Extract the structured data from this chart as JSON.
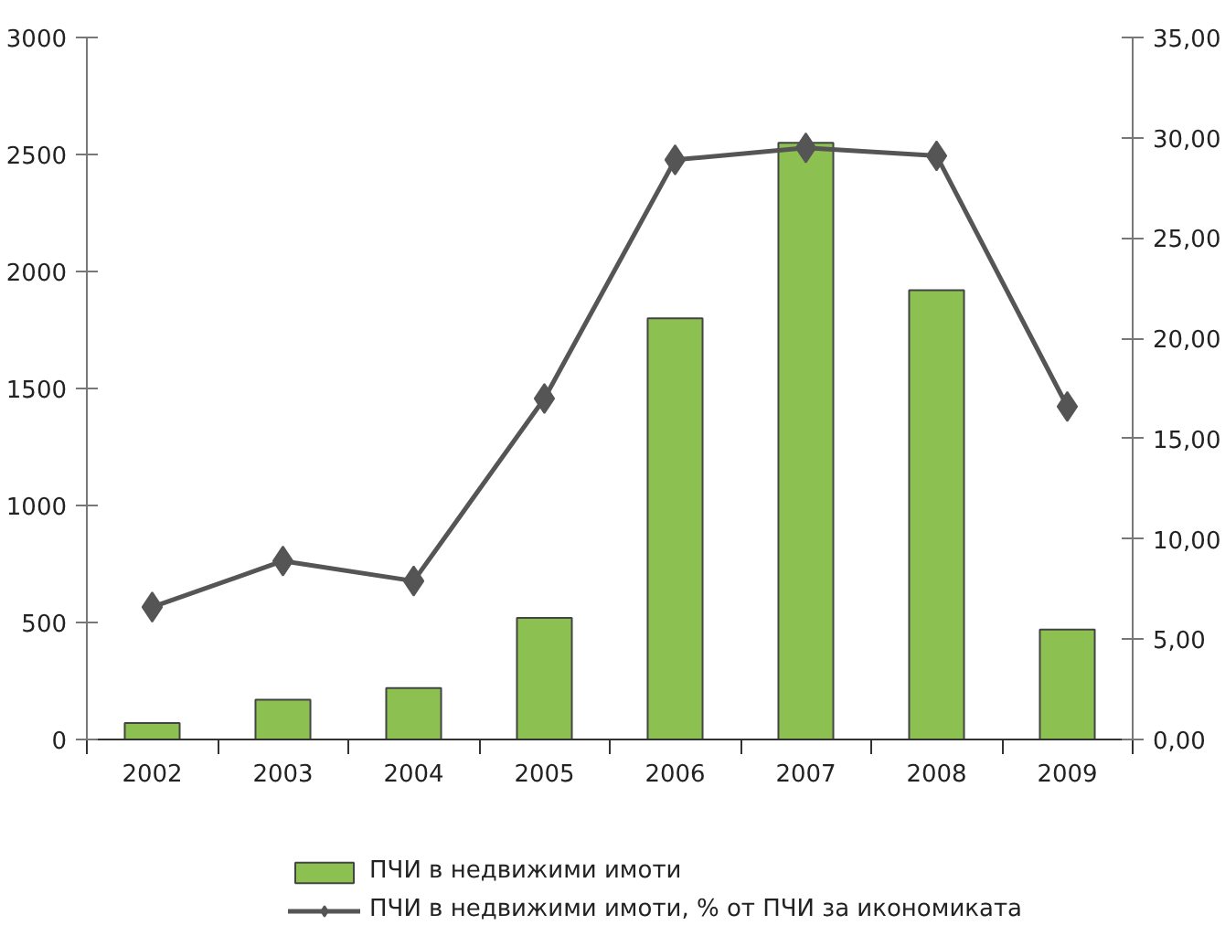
{
  "chart_data": {
    "type": "bar",
    "categories": [
      "2002",
      "2003",
      "2004",
      "2005",
      "2006",
      "2007",
      "2008",
      "2009"
    ],
    "series": [
      {
        "name": "ПЧИ в недвижими имоти",
        "color": "#8cc152",
        "values": [
          70,
          170,
          220,
          520,
          1800,
          2550,
          1920,
          470
        ]
      },
      {
        "name": "ПЧИ в недвижими имоти, % от ПЧИ за икономиката",
        "type": "line",
        "axis": "y2",
        "color": "#555555",
        "marker": "diamond",
        "values": [
          6.6,
          8.9,
          7.9,
          17.0,
          28.9,
          29.5,
          29.1,
          16.6
        ]
      }
    ],
    "ylim": [
      0,
      3000
    ],
    "yticks": [
      0,
      500,
      1000,
      1500,
      2000,
      2500,
      3000
    ],
    "y2lim": [
      0,
      35
    ],
    "y2ticks": [
      {
        "value": 0,
        "label": "0,00"
      },
      {
        "value": 5,
        "label": "5,00"
      },
      {
        "value": 10,
        "label": "10,00"
      },
      {
        "value": 15,
        "label": "15,00"
      },
      {
        "value": 20,
        "label": "20,00"
      },
      {
        "value": 25,
        "label": "25,00"
      },
      {
        "value": 30,
        "label": "30,00"
      },
      {
        "value": 35,
        "label": "35,00"
      }
    ],
    "grid": false,
    "legend": "bottom"
  }
}
